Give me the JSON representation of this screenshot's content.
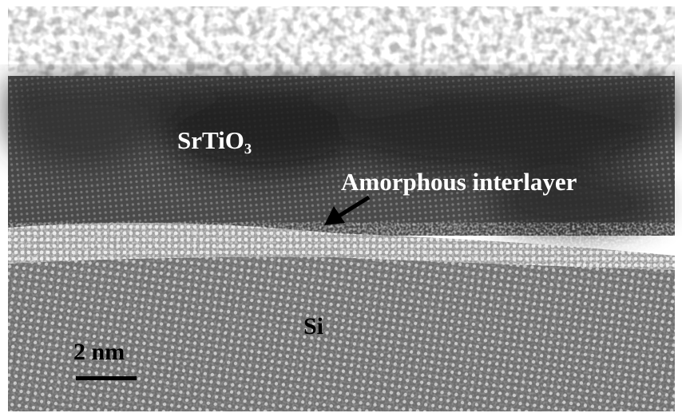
{
  "image": {
    "labels": {
      "film": "SrTiO₃",
      "interlayer": "Amorphous interlayer",
      "substrate": "Si"
    },
    "scale_bar": {
      "label": "2 nm"
    }
  }
}
